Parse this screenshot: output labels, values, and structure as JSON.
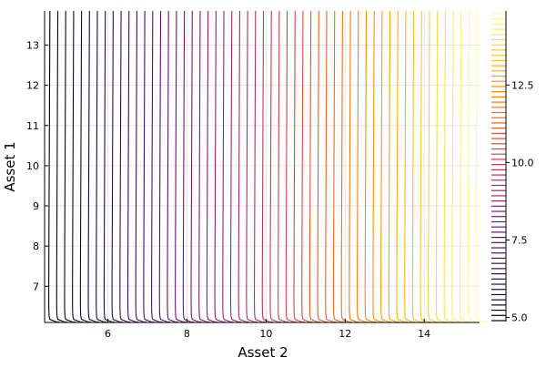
{
  "chart_data": {
    "type": "contour",
    "xlabel": "Asset 2",
    "ylabel": "Asset 1",
    "xlim": [
      4.4,
      15.4
    ],
    "ylim": [
      6.1,
      13.85
    ],
    "x_ticks": [
      {
        "value": 6,
        "label": "6"
      },
      {
        "value": 8,
        "label": "8"
      },
      {
        "value": 10,
        "label": "10"
      },
      {
        "value": 12,
        "label": "12"
      },
      {
        "value": 14,
        "label": "14"
      }
    ],
    "y_ticks": [
      {
        "value": 7,
        "label": "7"
      },
      {
        "value": 8,
        "label": "8"
      },
      {
        "value": 9,
        "label": "9"
      },
      {
        "value": 10,
        "label": "10"
      },
      {
        "value": 11,
        "label": "11"
      },
      {
        "value": 12,
        "label": "12"
      },
      {
        "value": 13,
        "label": "13"
      }
    ],
    "grid": true,
    "colormap": [
      "#000004",
      "#1b0c41",
      "#4a0c6b",
      "#781c6d",
      "#a52c60",
      "#cf4446",
      "#ed6925",
      "#fb9b06",
      "#f7d13d",
      "#fcffa4"
    ],
    "colorbar": {
      "range": [
        4.9,
        14.8
      ],
      "ticks": [
        {
          "value": 5.0,
          "label": "5.0"
        },
        {
          "value": 7.5,
          "label": "7.5"
        },
        {
          "value": 10.0,
          "label": "10.0"
        },
        {
          "value": 12.5,
          "label": "12.5"
        }
      ],
      "level_count": 60
    },
    "contour_levels": {
      "start": 4.5,
      "step": 0.2,
      "count": 55
    }
  }
}
